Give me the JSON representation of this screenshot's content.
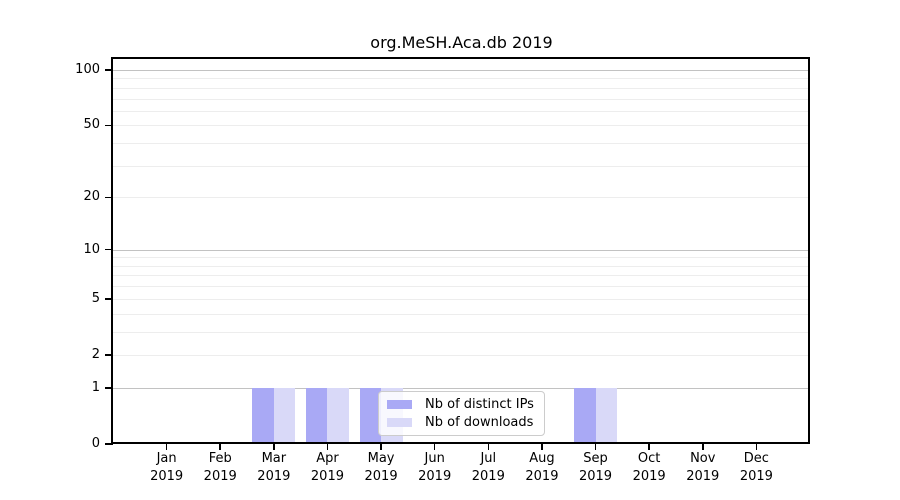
{
  "title": "org.MeSH.Aca.db 2019",
  "chart_data": {
    "type": "bar",
    "title": "org.MeSH.Aca.db 2019",
    "categories": [
      "Jan 2019",
      "Feb 2019",
      "Mar 2019",
      "Apr 2019",
      "May 2019",
      "Jun 2019",
      "Jul 2019",
      "Aug 2019",
      "Sep 2019",
      "Oct 2019",
      "Nov 2019",
      "Dec 2019"
    ],
    "series": [
      {
        "name": "Nb of distinct IPs",
        "color": "#a9a9f5",
        "values": [
          0,
          0,
          1,
          1,
          1,
          0,
          0,
          0,
          1,
          0,
          0,
          0
        ]
      },
      {
        "name": "Nb of downloads",
        "color": "#d9d9f8",
        "values": [
          0,
          0,
          1,
          1,
          1,
          0,
          0,
          0,
          1,
          0,
          0,
          0
        ]
      }
    ],
    "xlabel": "",
    "ylabel": "",
    "y_scale": "log1p",
    "y_ticks": [
      0,
      1,
      2,
      5,
      10,
      20,
      50,
      100
    ],
    "y_gridlines_major": [
      1,
      10,
      100
    ],
    "y_gridlines_minor": [
      2,
      3,
      4,
      5,
      6,
      7,
      8,
      9,
      20,
      30,
      40,
      50,
      60,
      70,
      80,
      90
    ],
    "ylim": [
      0,
      115
    ],
    "grid": true,
    "legend_position": "inside-bottom-center"
  },
  "colors": {
    "background": "#ffffff",
    "axis": "#000000",
    "grid_major": "#c2c2c2",
    "grid_minor": "#ededed",
    "legend_border": "#cccccc",
    "tick_label": "#000000"
  }
}
